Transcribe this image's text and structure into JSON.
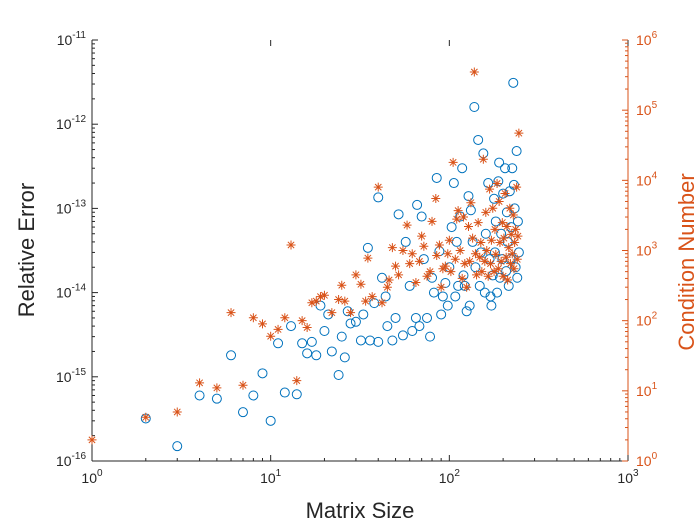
{
  "chart_data": {
    "type": "scatter",
    "title": "",
    "xlabel": "Matrix Size",
    "ylabel_left": "Relative Error",
    "ylabel_right": "Condition Number",
    "xscale": "log",
    "yscale_left": "log",
    "yscale_right": "log",
    "xlim": [
      1,
      1000
    ],
    "ylim_left": [
      1e-16,
      1e-11
    ],
    "ylim_right": [
      1,
      1000000
    ],
    "grid": false,
    "legend": "none",
    "colors": {
      "left_series": "#0072BD",
      "right_series": "#D95319",
      "axis": "#262626"
    },
    "x_ticks": [
      {
        "value": 1,
        "base": "10",
        "exp": "0"
      },
      {
        "value": 10,
        "base": "10",
        "exp": "1"
      },
      {
        "value": 100,
        "base": "10",
        "exp": "2"
      },
      {
        "value": 1000,
        "base": "10",
        "exp": "3"
      }
    ],
    "y_left_ticks": [
      {
        "value": 1e-16,
        "base": "10",
        "exp": "-16"
      },
      {
        "value": 1e-15,
        "base": "10",
        "exp": "-15"
      },
      {
        "value": 1e-14,
        "base": "10",
        "exp": "-14"
      },
      {
        "value": 1e-13,
        "base": "10",
        "exp": "-13"
      },
      {
        "value": 1e-12,
        "base": "10",
        "exp": "-12"
      },
      {
        "value": 1e-11,
        "base": "10",
        "exp": "-11"
      }
    ],
    "y_right_ticks": [
      {
        "value": 1,
        "base": "10",
        "exp": "0"
      },
      {
        "value": 10,
        "base": "10",
        "exp": "1"
      },
      {
        "value": 100,
        "base": "10",
        "exp": "2"
      },
      {
        "value": 1000,
        "base": "10",
        "exp": "3"
      },
      {
        "value": 10000,
        "base": "10",
        "exp": "4"
      },
      {
        "value": 100000,
        "base": "10",
        "exp": "5"
      },
      {
        "value": 1000000,
        "base": "10",
        "exp": "6"
      }
    ],
    "series": [
      {
        "axis": "left",
        "marker": "circle",
        "points": [
          [
            2,
            3.2e-16
          ],
          [
            3,
            1.5e-16
          ],
          [
            4,
            6e-16
          ],
          [
            5,
            5.5e-16
          ],
          [
            6,
            1.8e-15
          ],
          [
            7,
            3.8e-16
          ],
          [
            8,
            6e-16
          ],
          [
            9,
            1.1e-15
          ],
          [
            10,
            3e-16
          ],
          [
            11,
            2.5e-15
          ],
          [
            12,
            6.5e-16
          ],
          [
            13,
            4e-15
          ],
          [
            14,
            6.2e-16
          ],
          [
            15,
            2.5e-15
          ],
          [
            16,
            1.9e-15
          ],
          [
            17,
            2.6e-15
          ],
          [
            18,
            1.8e-15
          ],
          [
            19,
            7e-15
          ],
          [
            20,
            3.5e-15
          ],
          [
            21,
            5.5e-15
          ],
          [
            22,
            2e-15
          ],
          [
            24,
            1.05e-15
          ],
          [
            25,
            3e-15
          ],
          [
            26,
            1.7e-15
          ],
          [
            27,
            6e-15
          ],
          [
            28,
            4.3e-15
          ],
          [
            30,
            4.5e-15
          ],
          [
            32,
            2.7e-15
          ],
          [
            33,
            5.5e-15
          ],
          [
            35,
            3.4e-14
          ],
          [
            36,
            2.7e-15
          ],
          [
            38,
            7.5e-15
          ],
          [
            40,
            1.35e-13
          ],
          [
            40,
            2.6e-15
          ],
          [
            42,
            1.5e-14
          ],
          [
            44,
            9e-15
          ],
          [
            45,
            4e-15
          ],
          [
            48,
            2.7e-15
          ],
          [
            50,
            5e-15
          ],
          [
            52,
            8.5e-14
          ],
          [
            55,
            3.1e-15
          ],
          [
            57,
            4e-14
          ],
          [
            60,
            1.2e-14
          ],
          [
            62,
            3.5e-15
          ],
          [
            65,
            5e-15
          ],
          [
            66,
            1.1e-13
          ],
          [
            68,
            4e-15
          ],
          [
            70,
            8e-14
          ],
          [
            72,
            2.5e-14
          ],
          [
            75,
            5e-15
          ],
          [
            78,
            3e-15
          ],
          [
            80,
            1.5e-14
          ],
          [
            82,
            1e-14
          ],
          [
            85,
            2.3e-13
          ],
          [
            88,
            3.1e-14
          ],
          [
            90,
            5.5e-15
          ],
          [
            92,
            9e-15
          ],
          [
            95,
            1.3e-14
          ],
          [
            98,
            7e-15
          ],
          [
            100,
            2e-14
          ],
          [
            103,
            6e-14
          ],
          [
            106,
            2e-13
          ],
          [
            108,
            9e-15
          ],
          [
            110,
            4e-14
          ],
          [
            112,
            1.2e-14
          ],
          [
            115,
            8e-14
          ],
          [
            118,
            3e-13
          ],
          [
            120,
            1.6e-14
          ],
          [
            122,
            1.2e-14
          ],
          [
            125,
            6e-15
          ],
          [
            128,
            1.4e-13
          ],
          [
            130,
            7e-15
          ],
          [
            132,
            9.5e-14
          ],
          [
            135,
            4e-14
          ],
          [
            138,
            1.6e-12
          ],
          [
            140,
            2e-14
          ],
          [
            145,
            6.5e-13
          ],
          [
            148,
            1.2e-14
          ],
          [
            150,
            3e-14
          ],
          [
            155,
            4.5e-13
          ],
          [
            158,
            1e-14
          ],
          [
            160,
            5e-14
          ],
          [
            165,
            2e-13
          ],
          [
            168,
            2.5e-14
          ],
          [
            170,
            9e-15
          ],
          [
            172,
            7e-15
          ],
          [
            175,
            1.6e-14
          ],
          [
            178,
            1.3e-13
          ],
          [
            180,
            3e-14
          ],
          [
            182,
            7e-14
          ],
          [
            185,
            1e-14
          ],
          [
            188,
            2.1e-13
          ],
          [
            190,
            3.5e-13
          ],
          [
            192,
            1.5e-14
          ],
          [
            195,
            5e-14
          ],
          [
            198,
            2.5e-14
          ],
          [
            200,
            1.5e-13
          ],
          [
            205,
            3e-13
          ],
          [
            208,
            1.8e-14
          ],
          [
            210,
            9e-14
          ],
          [
            212,
            4e-14
          ],
          [
            215,
            1.2e-14
          ],
          [
            218,
            1.6e-13
          ],
          [
            220,
            2.5e-14
          ],
          [
            222,
            6e-14
          ],
          [
            225,
            3e-13
          ],
          [
            228,
            3.1e-12
          ],
          [
            230,
            1.9e-13
          ],
          [
            232,
            1e-13
          ],
          [
            235,
            2e-14
          ],
          [
            238,
            4.8e-13
          ],
          [
            240,
            1.5e-14
          ],
          [
            242,
            7e-14
          ],
          [
            245,
            3e-14
          ]
        ]
      },
      {
        "axis": "right",
        "marker": "asterisk",
        "points": [
          [
            1,
            2
          ],
          [
            2,
            4.2
          ],
          [
            3,
            5
          ],
          [
            4,
            13
          ],
          [
            5,
            11
          ],
          [
            6,
            130
          ],
          [
            7,
            12
          ],
          [
            8,
            110
          ],
          [
            9,
            90
          ],
          [
            10,
            60
          ],
          [
            11,
            75
          ],
          [
            12,
            110
          ],
          [
            13,
            1200
          ],
          [
            14,
            14
          ],
          [
            15,
            100
          ],
          [
            16,
            80
          ],
          [
            17,
            180
          ],
          [
            18,
            190
          ],
          [
            19,
            220
          ],
          [
            20,
            230
          ],
          [
            22,
            130
          ],
          [
            24,
            200
          ],
          [
            25,
            320
          ],
          [
            26,
            190
          ],
          [
            28,
            130
          ],
          [
            30,
            450
          ],
          [
            32,
            330
          ],
          [
            34,
            190
          ],
          [
            35,
            780
          ],
          [
            37,
            220
          ],
          [
            40,
            8000
          ],
          [
            42,
            180
          ],
          [
            45,
            300
          ],
          [
            46,
            380
          ],
          [
            48,
            1100
          ],
          [
            50,
            600
          ],
          [
            52,
            450
          ],
          [
            55,
            1000
          ],
          [
            58,
            2300
          ],
          [
            60,
            650
          ],
          [
            62,
            900
          ],
          [
            65,
            350
          ],
          [
            68,
            700
          ],
          [
            70,
            1600
          ],
          [
            72,
            1150
          ],
          [
            75,
            430
          ],
          [
            78,
            500
          ],
          [
            80,
            2600
          ],
          [
            84,
            5500
          ],
          [
            85,
            850
          ],
          [
            88,
            1200
          ],
          [
            90,
            300
          ],
          [
            92,
            550
          ],
          [
            95,
            600
          ],
          [
            98,
            900
          ],
          [
            100,
            1400
          ],
          [
            102,
            500
          ],
          [
            105,
            18000
          ],
          [
            108,
            750
          ],
          [
            110,
            2800
          ],
          [
            112,
            3700
          ],
          [
            115,
            1000
          ],
          [
            118,
            400
          ],
          [
            120,
            3000
          ],
          [
            122,
            650
          ],
          [
            125,
            300
          ],
          [
            128,
            2200
          ],
          [
            130,
            700
          ],
          [
            132,
            4800
          ],
          [
            135,
            1500
          ],
          [
            138,
            350000
          ],
          [
            140,
            900
          ],
          [
            142,
            450
          ],
          [
            145,
            2500
          ],
          [
            148,
            800
          ],
          [
            150,
            1300
          ],
          [
            152,
            500
          ],
          [
            155,
            20000
          ],
          [
            158,
            700
          ],
          [
            160,
            3500
          ],
          [
            162,
            1000
          ],
          [
            165,
            430
          ],
          [
            168,
            7500
          ],
          [
            170,
            650
          ],
          [
            172,
            1400
          ],
          [
            175,
            4000
          ],
          [
            178,
            500
          ],
          [
            180,
            2000
          ],
          [
            182,
            880
          ],
          [
            185,
            9000
          ],
          [
            188,
            550
          ],
          [
            190,
            5000
          ],
          [
            192,
            1300
          ],
          [
            195,
            700
          ],
          [
            198,
            2500
          ],
          [
            200,
            430
          ],
          [
            202,
            1500
          ],
          [
            205,
            6500
          ],
          [
            208,
            800
          ],
          [
            210,
            2200
          ],
          [
            212,
            380
          ],
          [
            215,
            1100
          ],
          [
            218,
            4000
          ],
          [
            220,
            650
          ],
          [
            222,
            1700
          ],
          [
            225,
            900
          ],
          [
            228,
            3200
          ],
          [
            230,
            550
          ],
          [
            232,
            1300
          ],
          [
            235,
            2000
          ],
          [
            238,
            8000
          ],
          [
            240,
            750
          ],
          [
            242,
            1600
          ],
          [
            245,
            47000
          ]
        ]
      }
    ]
  }
}
